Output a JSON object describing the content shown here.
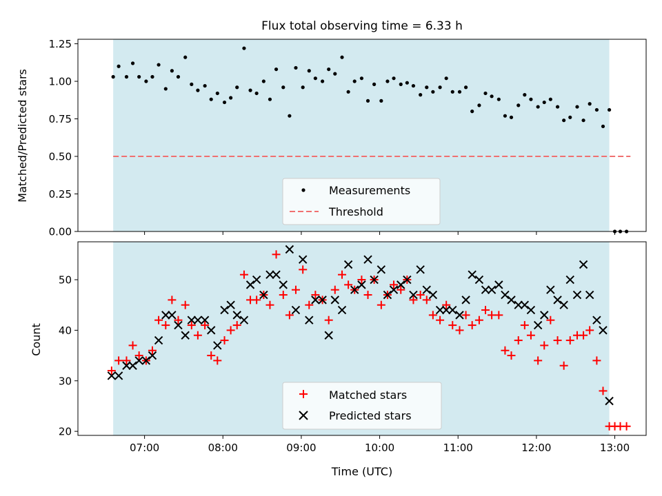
{
  "chart_data": {
    "title": "Flux total observing time = 6.33 h",
    "xlabel": "Time (UTC)",
    "x_unit": "hours UTC (decimal)",
    "xlim": [
      6.15,
      13.4
    ],
    "xticks": [
      7,
      8,
      9,
      10,
      11,
      12,
      13
    ],
    "xtick_labels": [
      "07:00",
      "08:00",
      "09:00",
      "10:00",
      "11:00",
      "12:00",
      "13:00"
    ],
    "observing_window": [
      6.6,
      12.93
    ],
    "window_color": "#d3eaf0",
    "panels": [
      {
        "type": "scatter",
        "ylabel": "Matched/Predicted stars",
        "ylim": [
          0,
          1.28
        ],
        "yticks": [
          0,
          0.25,
          0.5,
          0.75,
          1.0,
          1.25
        ],
        "ytick_labels": [
          "0.00",
          "0.25",
          "0.50",
          "0.75",
          "1.00",
          "1.25"
        ],
        "threshold": 0.5,
        "threshold_color": "#f07070",
        "legend": [
          {
            "name": "Measurements",
            "marker": "dot",
            "color": "#000000"
          },
          {
            "name": "Threshold",
            "marker": "dashed-line",
            "color": "#f07070"
          }
        ],
        "measurements": [
          [
            6.6,
            1.03
          ],
          [
            6.67,
            1.1
          ],
          [
            6.77,
            1.03
          ],
          [
            6.85,
            1.12
          ],
          [
            6.93,
            1.03
          ],
          [
            7.02,
            1.0
          ],
          [
            7.1,
            1.03
          ],
          [
            7.18,
            1.11
          ],
          [
            7.27,
            0.95
          ],
          [
            7.35,
            1.07
          ],
          [
            7.43,
            1.03
          ],
          [
            7.52,
            1.16
          ],
          [
            7.6,
            0.98
          ],
          [
            7.68,
            0.94
          ],
          [
            7.77,
            0.97
          ],
          [
            7.85,
            0.88
          ],
          [
            7.93,
            0.92
          ],
          [
            8.02,
            0.86
          ],
          [
            8.1,
            0.89
          ],
          [
            8.18,
            0.96
          ],
          [
            8.27,
            1.22
          ],
          [
            8.35,
            0.94
          ],
          [
            8.43,
            0.92
          ],
          [
            8.52,
            1.0
          ],
          [
            8.6,
            0.88
          ],
          [
            8.68,
            1.08
          ],
          [
            8.77,
            0.96
          ],
          [
            8.85,
            0.77
          ],
          [
            8.93,
            1.09
          ],
          [
            9.02,
            0.96
          ],
          [
            9.1,
            1.07
          ],
          [
            9.18,
            1.02
          ],
          [
            9.27,
            1.0
          ],
          [
            9.35,
            1.08
          ],
          [
            9.43,
            1.05
          ],
          [
            9.52,
            1.16
          ],
          [
            9.6,
            0.93
          ],
          [
            9.68,
            1.0
          ],
          [
            9.77,
            1.02
          ],
          [
            9.85,
            0.87
          ],
          [
            9.93,
            0.98
          ],
          [
            10.02,
            0.87
          ],
          [
            10.1,
            1.0
          ],
          [
            10.18,
            1.02
          ],
          [
            10.27,
            0.98
          ],
          [
            10.35,
            0.99
          ],
          [
            10.43,
            0.97
          ],
          [
            10.52,
            0.91
          ],
          [
            10.6,
            0.96
          ],
          [
            10.68,
            0.93
          ],
          [
            10.77,
            0.96
          ],
          [
            10.85,
            1.02
          ],
          [
            10.93,
            0.93
          ],
          [
            11.02,
            0.93
          ],
          [
            11.1,
            0.96
          ],
          [
            11.18,
            0.8
          ],
          [
            11.27,
            0.84
          ],
          [
            11.35,
            0.92
          ],
          [
            11.43,
            0.9
          ],
          [
            11.52,
            0.88
          ],
          [
            11.6,
            0.77
          ],
          [
            11.68,
            0.76
          ],
          [
            11.77,
            0.84
          ],
          [
            11.85,
            0.91
          ],
          [
            11.93,
            0.88
          ],
          [
            12.02,
            0.83
          ],
          [
            12.1,
            0.86
          ],
          [
            12.18,
            0.88
          ],
          [
            12.27,
            0.83
          ],
          [
            12.35,
            0.74
          ],
          [
            12.43,
            0.76
          ],
          [
            12.52,
            0.83
          ],
          [
            12.6,
            0.74
          ],
          [
            12.68,
            0.85
          ],
          [
            12.77,
            0.81
          ],
          [
            12.85,
            0.7
          ],
          [
            12.93,
            0.81
          ],
          [
            13.0,
            0.0
          ],
          [
            13.07,
            0.0
          ],
          [
            13.15,
            0.0
          ]
        ]
      },
      {
        "type": "scatter",
        "ylabel": "Count",
        "ylim": [
          19.2,
          57.5
        ],
        "yticks": [
          20,
          30,
          40,
          50
        ],
        "ytick_labels": [
          "20",
          "30",
          "40",
          "50"
        ],
        "legend": [
          {
            "name": "Matched stars",
            "marker": "plus",
            "color": "#ff0000"
          },
          {
            "name": "Predicted stars",
            "marker": "x",
            "color": "#000000"
          }
        ],
        "series": [
          {
            "name": "Matched stars",
            "points": [
              [
                6.58,
                32
              ],
              [
                6.67,
                34
              ],
              [
                6.77,
                34
              ],
              [
                6.85,
                37
              ],
              [
                6.93,
                35
              ],
              [
                7.02,
                34
              ],
              [
                7.1,
                36
              ],
              [
                7.18,
                42
              ],
              [
                7.27,
                41
              ],
              [
                7.35,
                46
              ],
              [
                7.43,
                42
              ],
              [
                7.52,
                45
              ],
              [
                7.6,
                41
              ],
              [
                7.68,
                39
              ],
              [
                7.77,
                41
              ],
              [
                7.85,
                35
              ],
              [
                7.93,
                34
              ],
              [
                8.02,
                38
              ],
              [
                8.1,
                40
              ],
              [
                8.18,
                41
              ],
              [
                8.27,
                51
              ],
              [
                8.35,
                46
              ],
              [
                8.43,
                46
              ],
              [
                8.52,
                47
              ],
              [
                8.6,
                45
              ],
              [
                8.68,
                55
              ],
              [
                8.77,
                47
              ],
              [
                8.85,
                43
              ],
              [
                8.93,
                48
              ],
              [
                9.02,
                52
              ],
              [
                9.1,
                45
              ],
              [
                9.18,
                47
              ],
              [
                9.27,
                46
              ],
              [
                9.35,
                42
              ],
              [
                9.43,
                48
              ],
              [
                9.52,
                51
              ],
              [
                9.6,
                49
              ],
              [
                9.68,
                48
              ],
              [
                9.77,
                50
              ],
              [
                9.85,
                47
              ],
              [
                9.93,
                50
              ],
              [
                10.02,
                45
              ],
              [
                10.1,
                47
              ],
              [
                10.18,
                49
              ],
              [
                10.27,
                48
              ],
              [
                10.35,
                50
              ],
              [
                10.43,
                46
              ],
              [
                10.52,
                47
              ],
              [
                10.6,
                46
              ],
              [
                10.68,
                43
              ],
              [
                10.77,
                42
              ],
              [
                10.85,
                45
              ],
              [
                10.93,
                41
              ],
              [
                11.02,
                40
              ],
              [
                11.1,
                43
              ],
              [
                11.18,
                41
              ],
              [
                11.27,
                42
              ],
              [
                11.35,
                44
              ],
              [
                11.43,
                43
              ],
              [
                11.52,
                43
              ],
              [
                11.6,
                36
              ],
              [
                11.68,
                35
              ],
              [
                11.77,
                38
              ],
              [
                11.85,
                41
              ],
              [
                11.93,
                39
              ],
              [
                12.02,
                34
              ],
              [
                12.1,
                37
              ],
              [
                12.18,
                42
              ],
              [
                12.27,
                38
              ],
              [
                12.35,
                33
              ],
              [
                12.43,
                38
              ],
              [
                12.52,
                39
              ],
              [
                12.6,
                39
              ],
              [
                12.68,
                40
              ],
              [
                12.77,
                34
              ],
              [
                12.85,
                28
              ],
              [
                12.93,
                21
              ],
              [
                13.0,
                21
              ],
              [
                13.07,
                21
              ],
              [
                13.15,
                21
              ]
            ]
          },
          {
            "name": "Predicted stars",
            "points": [
              [
                6.58,
                31
              ],
              [
                6.67,
                31
              ],
              [
                6.77,
                33
              ],
              [
                6.85,
                33
              ],
              [
                6.93,
                34
              ],
              [
                7.02,
                34
              ],
              [
                7.1,
                35
              ],
              [
                7.18,
                38
              ],
              [
                7.27,
                43
              ],
              [
                7.35,
                43
              ],
              [
                7.43,
                41
              ],
              [
                7.52,
                39
              ],
              [
                7.6,
                42
              ],
              [
                7.68,
                42
              ],
              [
                7.77,
                42
              ],
              [
                7.85,
                40
              ],
              [
                7.93,
                37
              ],
              [
                8.02,
                44
              ],
              [
                8.1,
                45
              ],
              [
                8.18,
                43
              ],
              [
                8.27,
                42
              ],
              [
                8.35,
                49
              ],
              [
                8.43,
                50
              ],
              [
                8.52,
                47
              ],
              [
                8.6,
                51
              ],
              [
                8.68,
                51
              ],
              [
                8.77,
                49
              ],
              [
                8.85,
                56
              ],
              [
                8.93,
                44
              ],
              [
                9.02,
                54
              ],
              [
                9.1,
                42
              ],
              [
                9.18,
                46
              ],
              [
                9.27,
                46
              ],
              [
                9.35,
                39
              ],
              [
                9.43,
                46
              ],
              [
                9.52,
                44
              ],
              [
                9.6,
                53
              ],
              [
                9.68,
                48
              ],
              [
                9.77,
                49
              ],
              [
                9.85,
                54
              ],
              [
                9.93,
                50
              ],
              [
                10.02,
                52
              ],
              [
                10.1,
                47
              ],
              [
                10.18,
                48
              ],
              [
                10.27,
                49
              ],
              [
                10.35,
                50
              ],
              [
                10.43,
                47
              ],
              [
                10.52,
                52
              ],
              [
                10.6,
                48
              ],
              [
                10.68,
                47
              ],
              [
                10.77,
                44
              ],
              [
                10.85,
                44
              ],
              [
                10.93,
                44
              ],
              [
                11.02,
                43
              ],
              [
                11.1,
                46
              ],
              [
                11.18,
                51
              ],
              [
                11.27,
                50
              ],
              [
                11.35,
                48
              ],
              [
                11.43,
                48
              ],
              [
                11.52,
                49
              ],
              [
                11.6,
                47
              ],
              [
                11.68,
                46
              ],
              [
                11.77,
                45
              ],
              [
                11.85,
                45
              ],
              [
                11.93,
                44
              ],
              [
                12.02,
                41
              ],
              [
                12.1,
                43
              ],
              [
                12.18,
                48
              ],
              [
                12.27,
                46
              ],
              [
                12.35,
                45
              ],
              [
                12.43,
                50
              ],
              [
                12.52,
                47
              ],
              [
                12.6,
                53
              ],
              [
                12.68,
                47
              ],
              [
                12.77,
                42
              ],
              [
                12.85,
                40
              ],
              [
                12.93,
                26
              ]
            ]
          }
        ]
      }
    ]
  }
}
